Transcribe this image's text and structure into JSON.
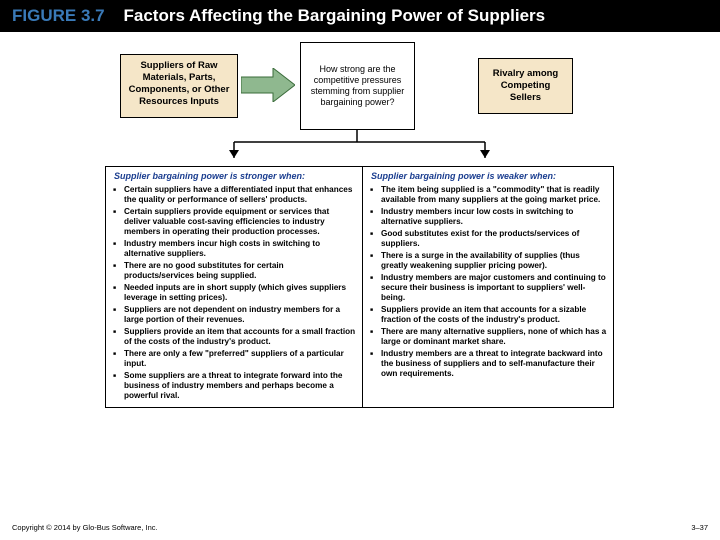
{
  "figure_label": "FIGURE 3.7",
  "figure_title": "Factors Affecting the Bargaining Power of Suppliers",
  "boxes": {
    "suppliers": "Suppliers of Raw Materials, Parts, Components, or Other Resources Inputs",
    "question": "How strong are the competitive pressures stemming from supplier bargaining power?",
    "rivalry": "Rivalry among Competing Sellers"
  },
  "arrow": {
    "fill": "#8fb88f",
    "stroke": "#3a6b3a"
  },
  "down_line_color": "#000000",
  "columns": {
    "stronger": {
      "head": "Supplier bargaining power is stronger when:",
      "items": [
        "Certain suppliers have a differentiated input that enhances the quality or performance of sellers' products.",
        "Certain suppliers provide equipment or services that deliver valuable cost-saving efficiencies to industry members in operating their production processes.",
        "Industry members incur high costs in switching to alternative suppliers.",
        "There are no good substitutes for certain products/services being supplied.",
        "Needed inputs are in short supply (which gives suppliers leverage in setting prices).",
        "Suppliers are not dependent on industry members for a large portion of their revenues.",
        "Suppliers provide an item that accounts for a small fraction of the costs of the industry's product.",
        "There are only a few \"preferred\" suppliers of a particular input.",
        "Some suppliers are a threat to integrate forward into the business of industry members and perhaps become a powerful rival."
      ]
    },
    "weaker": {
      "head": "Supplier bargaining power is weaker when:",
      "items": [
        "The item being supplied is a \"commodity\" that is readily available from many suppliers at the going market price.",
        "Industry members incur low costs in switching to alternative suppliers.",
        "Good substitutes exist for the products/services of suppliers.",
        "There is a surge in the availability of supplies (thus greatly weakening supplier pricing power).",
        "Industry members are major customers and continuing to secure their business is important to suppliers' well-being.",
        "Suppliers provide an item that accounts for a sizable fraction of the costs of the industry's product.",
        "There are many alternative suppliers, none of which has a large or dominant market share.",
        "Industry members are a threat to integrate backward into the business of suppliers and to self-manufacture their own requirements."
      ]
    }
  },
  "footer": {
    "copyright": "Copyright © 2014 by Glo-Bus Software, Inc.",
    "page": "3–37"
  },
  "colors": {
    "title_bg": "#000000",
    "fig_label": "#3a7ab8",
    "box_tan": "#f5e6c8",
    "col_head": "#1a3d8f"
  }
}
